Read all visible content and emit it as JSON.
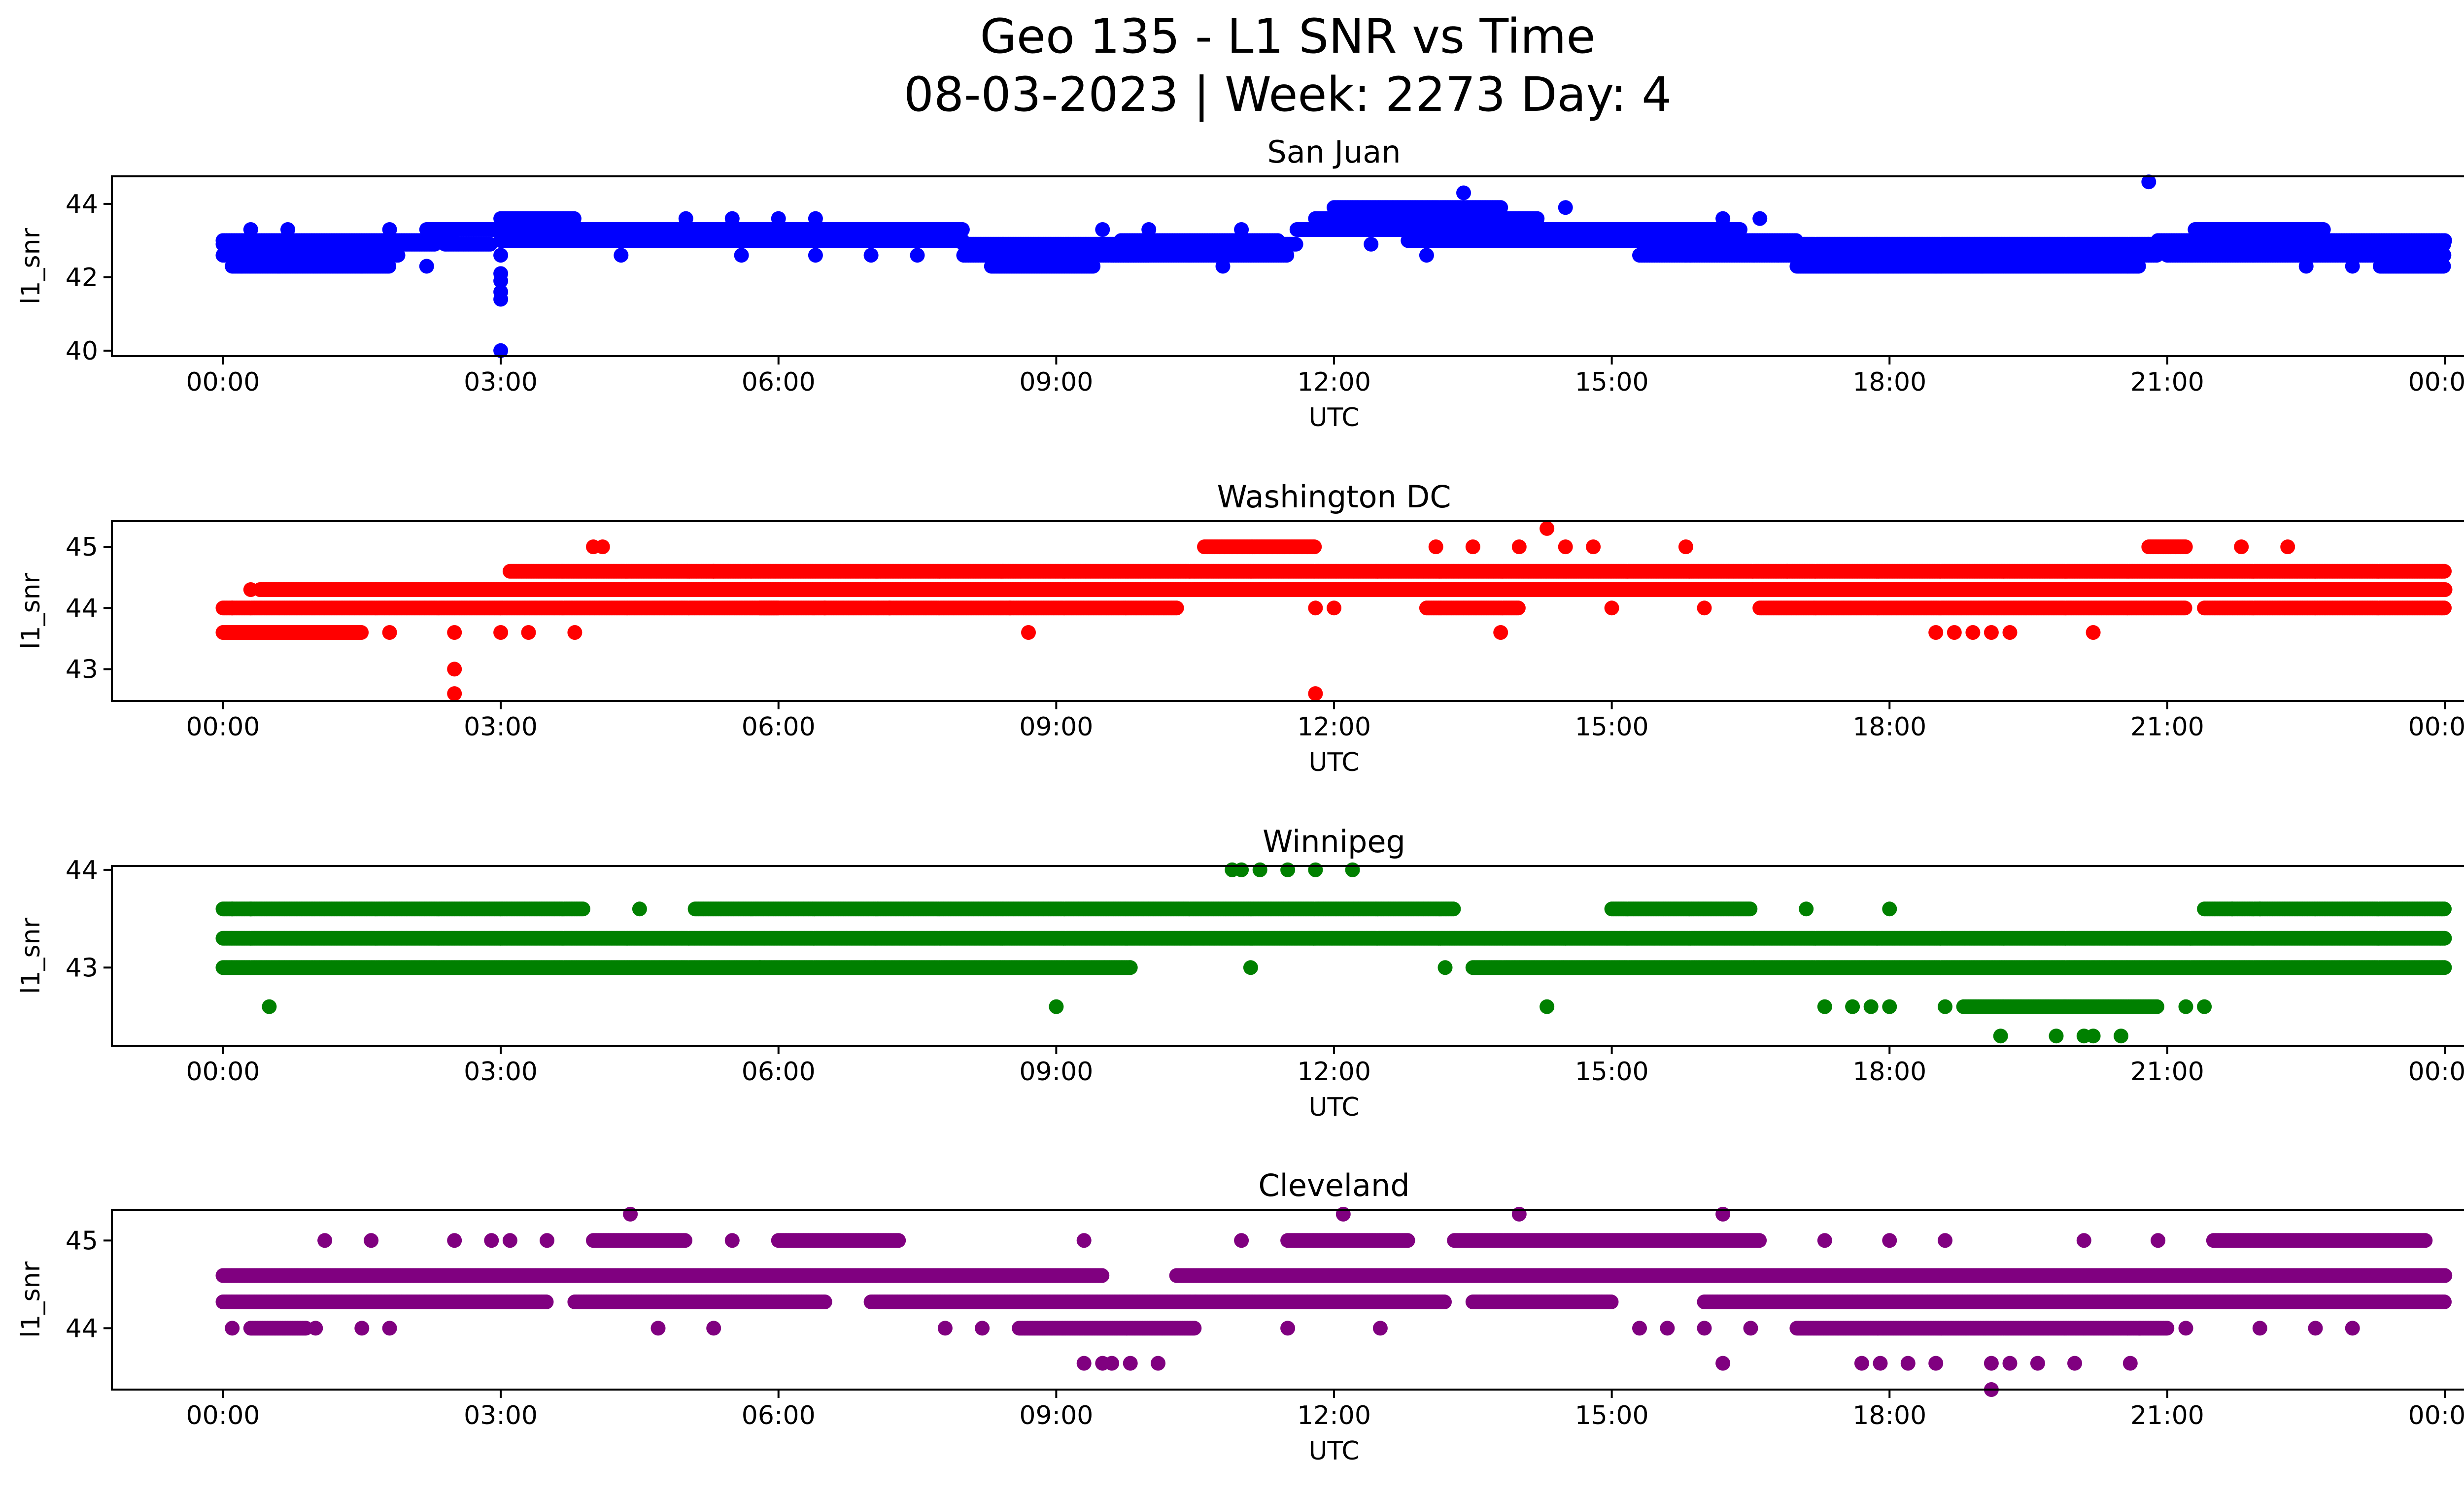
{
  "figure": {
    "title_line1": "Geo 135 - L1 SNR vs Time",
    "title_line2": "08-03-2023 | Week: 2273 Day: 4"
  },
  "x_axis": {
    "label": "UTC",
    "ticks": [
      0,
      3,
      6,
      9,
      12,
      15,
      18,
      21,
      24
    ],
    "tick_labels": [
      "00:00",
      "03:00",
      "06:00",
      "09:00",
      "12:00",
      "15:00",
      "18:00",
      "21:00",
      "00:00"
    ],
    "xlim_hours": [
      -1.2,
      25.2
    ]
  },
  "chart_data": [
    {
      "type": "scatter",
      "title": "San Juan",
      "xlabel": "UTC",
      "ylabel": "l1_snr",
      "color": "#0000ff",
      "ylim": [
        39.85,
        44.75
      ],
      "yticks": [
        40,
        42,
        44
      ],
      "x_unit": "hours UTC",
      "bands": [
        {
          "y": 42.6,
          "from": 0.0,
          "to": 1.9
        },
        {
          "y": 42.9,
          "from": 0.0,
          "to": 2.3
        },
        {
          "y": 42.3,
          "from": 0.1,
          "to": 1.8
        },
        {
          "y": 43.0,
          "from": 0.0,
          "to": 2.5
        },
        {
          "y": 42.9,
          "from": 2.4,
          "to": 2.9
        },
        {
          "y": 43.3,
          "from": 2.2,
          "to": 3.0
        },
        {
          "y": 43.3,
          "from": 3.0,
          "to": 8.0
        },
        {
          "y": 43.0,
          "from": 3.0,
          "to": 8.0
        },
        {
          "y": 43.6,
          "from": 3.0,
          "to": 3.8
        },
        {
          "y": 42.9,
          "from": 8.0,
          "to": 9.5
        },
        {
          "y": 42.6,
          "from": 8.0,
          "to": 10.0
        },
        {
          "y": 42.3,
          "from": 8.3,
          "to": 9.4
        },
        {
          "y": 42.9,
          "from": 9.5,
          "to": 11.6
        },
        {
          "y": 42.6,
          "from": 9.6,
          "to": 11.5
        },
        {
          "y": 43.0,
          "from": 9.7,
          "to": 11.4
        },
        {
          "y": 43.3,
          "from": 11.6,
          "to": 11.9
        },
        {
          "y": 43.6,
          "from": 11.8,
          "to": 14.2
        },
        {
          "y": 43.3,
          "from": 11.8,
          "to": 15.0
        },
        {
          "y": 43.9,
          "from": 12.0,
          "to": 13.8
        },
        {
          "y": 43.0,
          "from": 12.8,
          "to": 15.2
        },
        {
          "y": 43.3,
          "from": 15.0,
          "to": 16.4
        },
        {
          "y": 43.0,
          "from": 15.1,
          "to": 17.0
        },
        {
          "y": 42.6,
          "from": 15.3,
          "to": 16.8
        },
        {
          "y": 42.6,
          "from": 16.8,
          "to": 20.9
        },
        {
          "y": 42.9,
          "from": 16.9,
          "to": 20.8
        },
        {
          "y": 42.3,
          "from": 17.0,
          "to": 20.7
        },
        {
          "y": 42.9,
          "from": 20.8,
          "to": 24.0
        },
        {
          "y": 43.0,
          "from": 20.9,
          "to": 24.0
        },
        {
          "y": 42.6,
          "from": 21.0,
          "to": 24.0
        },
        {
          "y": 43.3,
          "from": 21.3,
          "to": 22.7
        },
        {
          "y": 42.3,
          "from": 23.3,
          "to": 24.0
        }
      ],
      "points": [
        [
          3.0,
          40.0
        ],
        [
          3.0,
          41.4
        ],
        [
          3.0,
          41.6
        ],
        [
          3.0,
          41.9
        ],
        [
          3.0,
          42.1
        ],
        [
          3.0,
          42.6
        ],
        [
          4.3,
          42.6
        ],
        [
          5.6,
          42.6
        ],
        [
          6.4,
          42.6
        ],
        [
          7.0,
          42.6
        ],
        [
          7.5,
          42.6
        ],
        [
          10.8,
          42.3
        ],
        [
          12.4,
          42.9
        ],
        [
          13.0,
          42.6
        ],
        [
          13.4,
          44.3
        ],
        [
          14.5,
          43.9
        ],
        [
          15.8,
          42.6
        ],
        [
          20.8,
          44.6
        ],
        [
          0.2,
          42.3
        ],
        [
          0.6,
          42.3
        ],
        [
          1.5,
          42.3
        ],
        [
          2.2,
          42.3
        ],
        [
          0.3,
          43.3
        ],
        [
          0.7,
          43.3
        ],
        [
          1.8,
          43.3
        ],
        [
          5.0,
          43.6
        ],
        [
          5.5,
          43.6
        ],
        [
          6.0,
          43.6
        ],
        [
          6.4,
          43.6
        ],
        [
          9.5,
          43.3
        ],
        [
          10.0,
          43.3
        ],
        [
          11.0,
          43.3
        ],
        [
          14.0,
          43.6
        ],
        [
          16.2,
          43.6
        ],
        [
          16.6,
          43.6
        ],
        [
          22.5,
          42.3
        ],
        [
          23.0,
          42.3
        ],
        [
          19.0,
          42.3
        ],
        [
          18.5,
          42.3
        ]
      ]
    },
    {
      "type": "scatter",
      "title": "Washington DC",
      "xlabel": "UTC",
      "ylabel": "l1_snr",
      "color": "#ff0000",
      "ylim": [
        42.48,
        45.42
      ],
      "yticks": [
        43,
        44,
        45
      ],
      "x_unit": "hours UTC",
      "bands": [
        {
          "y": 44.0,
          "from": 0.0,
          "to": 6.0
        },
        {
          "y": 43.6,
          "from": 0.0,
          "to": 1.5
        },
        {
          "y": 44.3,
          "from": 0.4,
          "to": 5.9
        },
        {
          "y": 44.6,
          "from": 3.1,
          "to": 5.3
        },
        {
          "y": 44.6,
          "from": 5.3,
          "to": 10.5
        },
        {
          "y": 44.3,
          "from": 5.3,
          "to": 10.9
        },
        {
          "y": 44.0,
          "from": 5.8,
          "to": 10.3
        },
        {
          "y": 44.6,
          "from": 10.5,
          "to": 16.9
        },
        {
          "y": 44.3,
          "from": 10.5,
          "to": 24.0
        },
        {
          "y": 45.0,
          "from": 10.6,
          "to": 11.8
        },
        {
          "y": 44.0,
          "from": 13.0,
          "to": 14.0
        },
        {
          "y": 44.6,
          "from": 16.9,
          "to": 24.0
        },
        {
          "y": 44.0,
          "from": 16.6,
          "to": 21.2
        },
        {
          "y": 44.0,
          "from": 21.4,
          "to": 24.0
        },
        {
          "y": 45.0,
          "from": 20.8,
          "to": 21.2
        }
      ],
      "points": [
        [
          0.1,
          44.0
        ],
        [
          0.3,
          44.3
        ],
        [
          1.4,
          43.6
        ],
        [
          1.8,
          43.6
        ],
        [
          2.5,
          42.6
        ],
        [
          2.5,
          43.0
        ],
        [
          2.5,
          43.6
        ],
        [
          3.0,
          43.6
        ],
        [
          3.3,
          43.6
        ],
        [
          3.8,
          43.6
        ],
        [
          4.0,
          45.0
        ],
        [
          4.1,
          45.0
        ],
        [
          8.7,
          43.6
        ],
        [
          11.2,
          44.3
        ],
        [
          11.5,
          44.3
        ],
        [
          11.8,
          42.6
        ],
        [
          11.8,
          44.0
        ],
        [
          13.1,
          45.0
        ],
        [
          13.5,
          45.0
        ],
        [
          14.3,
          45.3
        ],
        [
          14.0,
          45.0
        ],
        [
          14.5,
          45.0
        ],
        [
          14.8,
          45.0
        ],
        [
          15.8,
          45.0
        ],
        [
          13.8,
          43.6
        ],
        [
          18.5,
          43.6
        ],
        [
          18.7,
          43.6
        ],
        [
          18.9,
          43.6
        ],
        [
          19.1,
          43.6
        ],
        [
          19.3,
          43.6
        ],
        [
          20.2,
          43.6
        ],
        [
          21.8,
          45.0
        ],
        [
          22.3,
          45.0
        ],
        [
          6.5,
          44.0
        ],
        [
          7.2,
          44.0
        ],
        [
          8.5,
          44.0
        ],
        [
          12.0,
          44.0
        ],
        [
          15.0,
          44.0
        ],
        [
          16.0,
          44.0
        ]
      ]
    },
    {
      "type": "scatter",
      "title": "Winnipeg",
      "xlabel": "UTC",
      "ylabel": "l1_snr",
      "color": "#008000",
      "ylim": [
        42.2,
        44.04
      ],
      "yticks": [
        43,
        44
      ],
      "x_unit": "hours UTC",
      "bands": [
        {
          "y": 43.3,
          "from": 0.0,
          "to": 24.0
        },
        {
          "y": 43.0,
          "from": 0.0,
          "to": 9.8
        },
        {
          "y": 43.0,
          "from": 13.5,
          "to": 24.0
        },
        {
          "y": 43.6,
          "from": 5.1,
          "to": 13.3
        },
        {
          "y": 43.6,
          "from": 15.0,
          "to": 16.5
        },
        {
          "y": 43.6,
          "from": 21.4,
          "to": 24.0
        },
        {
          "y": 43.6,
          "from": 0.0,
          "to": 3.9
        },
        {
          "y": 42.6,
          "from": 18.8,
          "to": 20.9
        }
      ],
      "points": [
        [
          0.1,
          43.6
        ],
        [
          0.3,
          43.6
        ],
        [
          0.5,
          42.6
        ],
        [
          9.0,
          42.6
        ],
        [
          11.1,
          43.0
        ],
        [
          13.2,
          43.0
        ],
        [
          10.9,
          44.0
        ],
        [
          11.0,
          44.0
        ],
        [
          11.2,
          44.0
        ],
        [
          11.5,
          44.0
        ],
        [
          11.8,
          44.0
        ],
        [
          12.2,
          44.0
        ],
        [
          14.3,
          42.6
        ],
        [
          17.1,
          43.6
        ],
        [
          18.0,
          43.6
        ],
        [
          4.5,
          43.6
        ],
        [
          17.3,
          42.6
        ],
        [
          17.6,
          42.6
        ],
        [
          17.8,
          42.6
        ],
        [
          18.0,
          42.6
        ],
        [
          18.6,
          42.6
        ],
        [
          19.2,
          42.3
        ],
        [
          19.8,
          42.3
        ],
        [
          20.1,
          42.3
        ],
        [
          20.2,
          42.3
        ],
        [
          20.5,
          42.3
        ],
        [
          21.2,
          42.6
        ],
        [
          21.4,
          42.6
        ],
        [
          21.7,
          43.6
        ],
        [
          22.0,
          43.6
        ],
        [
          9.8,
          43.0
        ],
        [
          5.8,
          43.0
        ]
      ]
    },
    {
      "type": "scatter",
      "title": "Cleveland",
      "xlabel": "UTC",
      "ylabel": "l1_snr",
      "color": "#800080",
      "ylim": [
        43.3,
        45.35
      ],
      "yticks": [
        44,
        45
      ],
      "x_unit": "hours UTC",
      "bands": [
        {
          "y": 44.6,
          "from": 0.0,
          "to": 0.8
        },
        {
          "y": 44.6,
          "from": 0.8,
          "to": 9.5
        },
        {
          "y": 44.6,
          "from": 10.3,
          "to": 24.0
        },
        {
          "y": 44.3,
          "from": 0.0,
          "to": 3.5
        },
        {
          "y": 44.3,
          "from": 3.8,
          "to": 6.5
        },
        {
          "y": 44.3,
          "from": 7.0,
          "to": 13.2
        },
        {
          "y": 44.3,
          "from": 13.5,
          "to": 15.0
        },
        {
          "y": 44.3,
          "from": 16.0,
          "to": 24.0
        },
        {
          "y": 44.0,
          "from": 0.3,
          "to": 0.9
        },
        {
          "y": 44.0,
          "from": 8.6,
          "to": 10.5
        },
        {
          "y": 44.0,
          "from": 17.0,
          "to": 21.0
        },
        {
          "y": 45.0,
          "from": 4.0,
          "to": 5.0
        },
        {
          "y": 45.0,
          "from": 6.0,
          "to": 7.3
        },
        {
          "y": 45.0,
          "from": 11.5,
          "to": 12.8
        },
        {
          "y": 45.0,
          "from": 13.3,
          "to": 16.6
        },
        {
          "y": 45.0,
          "from": 21.5,
          "to": 23.8
        }
      ],
      "points": [
        [
          0.1,
          44.0
        ],
        [
          1.1,
          45.0
        ],
        [
          1.6,
          45.0
        ],
        [
          2.5,
          45.0
        ],
        [
          2.9,
          45.0
        ],
        [
          3.1,
          45.0
        ],
        [
          3.5,
          45.0
        ],
        [
          4.4,
          45.3
        ],
        [
          4.7,
          44.0
        ],
        [
          5.3,
          44.0
        ],
        [
          5.5,
          45.0
        ],
        [
          7.8,
          44.0
        ],
        [
          8.2,
          44.0
        ],
        [
          9.3,
          43.6
        ],
        [
          9.5,
          43.6
        ],
        [
          9.6,
          43.6
        ],
        [
          9.8,
          43.6
        ],
        [
          10.1,
          43.6
        ],
        [
          9.3,
          45.0
        ],
        [
          11.0,
          45.0
        ],
        [
          12.1,
          45.3
        ],
        [
          14.0,
          45.3
        ],
        [
          16.2,
          45.3
        ],
        [
          16.2,
          43.6
        ],
        [
          17.7,
          43.6
        ],
        [
          17.9,
          43.6
        ],
        [
          18.2,
          43.6
        ],
        [
          18.5,
          43.6
        ],
        [
          19.1,
          43.3
        ],
        [
          19.1,
          43.6
        ],
        [
          19.3,
          43.6
        ],
        [
          19.6,
          43.6
        ],
        [
          20.0,
          43.6
        ],
        [
          20.6,
          43.6
        ],
        [
          15.3,
          44.0
        ],
        [
          15.6,
          44.0
        ],
        [
          16.0,
          44.0
        ],
        [
          16.5,
          44.0
        ],
        [
          20.7,
          44.0
        ],
        [
          21.2,
          44.0
        ],
        [
          22.0,
          44.0
        ],
        [
          22.6,
          44.0
        ],
        [
          23.0,
          44.0
        ],
        [
          20.1,
          45.0
        ],
        [
          20.9,
          45.0
        ],
        [
          17.3,
          45.0
        ],
        [
          18.0,
          45.0
        ],
        [
          18.6,
          45.0
        ],
        [
          1.0,
          44.0
        ],
        [
          1.5,
          44.0
        ],
        [
          1.8,
          44.0
        ],
        [
          10.5,
          44.3
        ],
        [
          11.5,
          44.0
        ],
        [
          12.5,
          44.0
        ]
      ]
    }
  ]
}
